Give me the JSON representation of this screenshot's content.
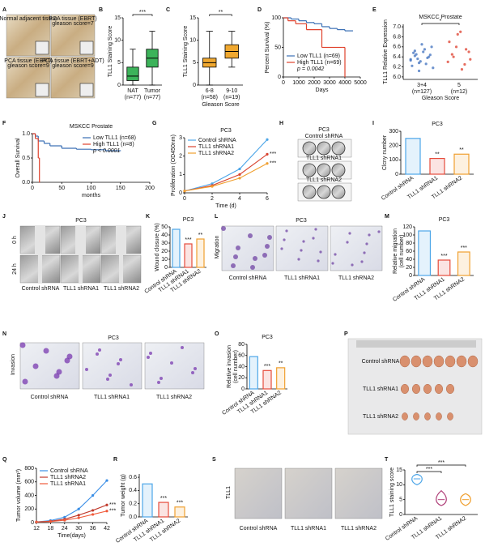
{
  "panels": [
    {
      "label": "A",
      "type": "image",
      "texts": [
        "Normal adjacent tissue",
        "PCA tissue (EBRT)",
        "gleason score=7",
        "PCA tissue (EBRT)",
        "gleason score=9",
        "PCA tissue (EBRT+ADT)",
        "gleason score=9"
      ]
    },
    {
      "label": "B",
      "type": "box",
      "ylabel": "TLL1 Staining Score",
      "categories": [
        "NAT",
        "Tumor"
      ],
      "n": [
        "(n=77)",
        "(n=77)"
      ],
      "color": "#3cb35a",
      "boxes": [
        {
          "min": 0,
          "q1": 1,
          "median": 2,
          "q3": 4,
          "max": 8
        },
        {
          "min": 0,
          "q1": 4,
          "median": 6,
          "q3": 8,
          "max": 12
        }
      ],
      "ylim": [
        0,
        15
      ],
      "yticks": [
        0,
        5,
        10,
        15
      ],
      "sig": "***"
    },
    {
      "label": "C",
      "type": "box",
      "ylabel": "TLL1 Staining Score",
      "xlabel": "Gleason Score",
      "categories": [
        "6-8",
        "9-10"
      ],
      "n": [
        "(n=58)",
        "(n=19)"
      ],
      "color": "#f0a830",
      "boxes": [
        {
          "min": 0,
          "q1": 4,
          "median": 5,
          "q3": 6,
          "max": 12
        },
        {
          "min": 4,
          "q1": 6,
          "median": 7.5,
          "q3": 9,
          "max": 12
        }
      ],
      "ylim": [
        0,
        15
      ],
      "yticks": [
        0,
        5,
        10,
        15
      ],
      "sig": "**"
    },
    {
      "label": "D",
      "type": "km",
      "ylabel": "Percent Survival (%)",
      "xlabel": "Days",
      "series": [
        {
          "name": "Low TLL1 (n=69)",
          "color": "#3a6fb5",
          "x": [
            0,
            500,
            1000,
            1500,
            2000,
            2500,
            3000,
            3500,
            4000,
            4500
          ],
          "y": [
            100,
            98,
            95,
            92,
            90,
            85,
            82,
            80,
            78,
            78
          ]
        },
        {
          "name": "High TLL1 (n=69)",
          "color": "#e0412b",
          "x": [
            0,
            300,
            800,
            1500,
            2500,
            3000,
            3800,
            4000
          ],
          "y": [
            100,
            95,
            90,
            80,
            50,
            50,
            50,
            0
          ]
        }
      ],
      "note": "p = 0.0042",
      "xlim": [
        0,
        5000
      ],
      "xticks": [
        0,
        1000,
        2000,
        3000,
        4000,
        5000
      ],
      "ylim": [
        0,
        100
      ],
      "yticks": [
        0,
        50,
        100
      ]
    },
    {
      "label": "E",
      "type": "scatter",
      "title": "MSKCC Prostate",
      "ylabel": "TLL1 Relative Expression",
      "xlabel": "Gleason Score",
      "categories": [
        "3+4",
        "5"
      ],
      "n": [
        "(n=127)",
        "(n=12)"
      ],
      "colors": [
        "#4a78c2",
        "#e04a3a"
      ],
      "groups": [
        [
          6.35,
          6.42,
          6.28,
          6.5,
          6.38,
          6.6,
          6.22,
          6.45,
          6.31,
          6.55,
          6.4,
          6.18,
          6.48,
          6.36,
          6.65,
          6.26,
          6.44,
          6.33,
          6.52,
          6.12
        ],
        [
          6.3,
          6.45,
          6.6,
          6.9,
          6.25,
          6.5,
          6.7,
          6.4,
          6.85,
          6.15,
          6.55,
          6.35
        ]
      ],
      "ylim": [
        5.95,
        7.05
      ],
      "yticks": [
        {
          "value": 6,
          "label": "6.0"
        },
        6.2,
        6.4,
        6.6,
        6.8,
        {
          "value": 7,
          "label": "7.0"
        }
      ],
      "sig": "*"
    },
    {
      "label": "F",
      "type": "km",
      "title": "MSKCC Prostate",
      "ylabel": "Overall Survival",
      "xlabel": "months",
      "series": [
        {
          "name": "Low TLL1 (n=68)",
          "color": "#3a6fb5",
          "x": [
            0,
            5,
            10,
            20,
            30,
            50,
            75,
            100,
            125,
            150
          ],
          "y": [
            1,
            0.95,
            0.85,
            0.8,
            0.75,
            0.7,
            0.68,
            0.67,
            0.65,
            0.65
          ]
        },
        {
          "name": "High TLL1 (n=8)",
          "color": "#e0412b",
          "x": [
            0,
            5,
            10,
            12
          ],
          "y": [
            1,
            0.9,
            0.5,
            0
          ]
        }
      ],
      "note": "p < 0.0001",
      "xlim": [
        0,
        200
      ],
      "xticks": [
        0,
        50,
        100,
        150,
        200
      ],
      "ylim": [
        0,
        1
      ],
      "yticks": [
        {
          "value": 0,
          "label": "0.0"
        },
        0.5,
        {
          "value": 1,
          "label": "1.0"
        }
      ]
    },
    {
      "label": "G",
      "type": "line",
      "title": "PC3",
      "ylabel": "Proliferation (OD450nm)",
      "xlabel": "Time (d)",
      "x": [
        0,
        2,
        4,
        6
      ],
      "series": [
        {
          "name": "Control shRNA",
          "color": "#4da6e8",
          "values": [
            0.1,
            0.5,
            1.3,
            2.9
          ]
        },
        {
          "name": "TLL1 shRNA1",
          "color": "#d8432f",
          "values": [
            0.1,
            0.4,
            1.0,
            2.1
          ]
        },
        {
          "name": "TLL1 shRNA2",
          "color": "#f0a030",
          "values": [
            0.1,
            0.35,
            0.8,
            1.6
          ]
        }
      ],
      "sig": [
        "***",
        "***"
      ],
      "xlim": [
        0,
        6
      ],
      "xticks": [
        0,
        2,
        4,
        6
      ],
      "ylim": [
        0,
        3
      ],
      "yticks": [
        0,
        1,
        2,
        3
      ]
    },
    {
      "label": "H",
      "type": "image",
      "title": "PC3",
      "labels": [
        "Control shRNA",
        "TLL1 shRNA1",
        "TLL1 shRNA2"
      ]
    },
    {
      "label": "I",
      "type": "bar",
      "title": "PC3",
      "ylabel": "Clcny number",
      "categories": [
        "Control shRNA",
        "TLL1 shRNA1",
        "TLL1 shRNA2"
      ],
      "values": [
        250,
        110,
        140
      ],
      "colors": [
        "#4da6e8",
        "#e74c3c",
        "#f0a030"
      ],
      "sig": [
        "**",
        "**"
      ],
      "ylim": [
        0,
        300
      ],
      "yticks": [
        0,
        100,
        200,
        300
      ]
    },
    {
      "label": "J",
      "type": "image",
      "title": "PC3",
      "rows": [
        "0 h",
        "24 h"
      ],
      "labels": [
        "Control shRNA",
        "TLL1 shRNA1",
        "TLL1 shRNA2"
      ]
    },
    {
      "label": "K",
      "type": "bar",
      "title": "PC3",
      "ylabel": "Wound closure (%)",
      "categories": [
        "Control shRNA",
        "TLL1 shRNA1",
        "TLL1 shRNA2"
      ],
      "values": [
        47,
        29,
        35
      ],
      "colors": [
        "#4da6e8",
        "#e74c3c",
        "#f0a030"
      ],
      "sig": [
        "***",
        "**"
      ],
      "ylim": [
        0,
        50
      ],
      "yticks": [
        0,
        10,
        20,
        30,
        40,
        50
      ]
    },
    {
      "label": "L",
      "type": "image",
      "title": "PC3",
      "side": "Migration",
      "labels": [
        "Control shRNA",
        "TLL1 shRNA1",
        "TLL1 shRNA2"
      ]
    },
    {
      "label": "M",
      "type": "bar",
      "title": "PC3",
      "ylabel": [
        "Relative migration",
        "(cell number)"
      ],
      "categories": [
        "Control shRNA",
        "TLL1 shRNA1",
        "TLL1 shRNA2"
      ],
      "values": [
        110,
        38,
        58
      ],
      "colors": [
        "#4da6e8",
        "#e74c3c",
        "#f0a030"
      ],
      "sig": [
        "***",
        "***"
      ],
      "ylim": [
        0,
        120
      ],
      "yticks": [
        0,
        20,
        40,
        60,
        80,
        100,
        120
      ]
    },
    {
      "label": "N",
      "type": "image",
      "title": "PC3",
      "side": "Invasion",
      "labels": [
        "Control shRNA",
        "TLL1 shRNA1",
        "TLL1 shRNA2"
      ]
    },
    {
      "label": "O",
      "type": "bar",
      "title": "PC3",
      "ylabel": [
        "Relative invasion",
        "(cell number)"
      ],
      "categories": [
        "Control shRNA",
        "TLL1 shRNA1",
        "TLL1 shRNA2"
      ],
      "values": [
        58,
        33,
        38
      ],
      "colors": [
        "#4da6e8",
        "#e74c3c",
        "#f0a030"
      ],
      "sig": [
        "***",
        "**"
      ],
      "ylim": [
        0,
        80
      ],
      "yticks": [
        0,
        20,
        40,
        60,
        80
      ]
    },
    {
      "label": "P",
      "type": "image",
      "labels": [
        "Control shRNA",
        "TLL1 shRNA1",
        "TLL1 shRNA2"
      ]
    },
    {
      "label": "Q",
      "type": "line",
      "ylabel": "Tumor volume (mm³)",
      "xlabel": "Time(days)",
      "x": [
        12,
        18,
        24,
        30,
        36,
        42
      ],
      "series": [
        {
          "name": "Control shRNA",
          "color": "#3a8ee6",
          "values": [
            10,
            30,
            80,
            200,
            400,
            620
          ]
        },
        {
          "name": "TLL1 shRNA2",
          "color": "#c0392b",
          "values": [
            10,
            20,
            50,
            110,
            180,
            260
          ]
        },
        {
          "name": "TLL1 shRNA1",
          "color": "#f05a3a",
          "values": [
            10,
            15,
            35,
            70,
            120,
            170
          ]
        }
      ],
      "sig": [
        "***",
        "***"
      ],
      "xlim": [
        12,
        42
      ],
      "xticks": [
        12,
        18,
        24,
        30,
        36,
        42
      ],
      "ylim": [
        0,
        800
      ],
      "yticks": [
        0,
        200,
        400,
        600,
        800
      ]
    },
    {
      "label": "R",
      "type": "bar",
      "ylabel": "Tumor weight (g)",
      "categories": [
        "Control shRNA",
        "TLL1 shRNA1",
        "TLL1 shRNA2"
      ],
      "values": [
        0.5,
        0.22,
        0.15
      ],
      "colors": [
        "#4da6e8",
        "#e74c3c",
        "#f0a030"
      ],
      "sig": [
        "***",
        "***"
      ],
      "ylim": [
        0,
        0.65
      ],
      "yticks": [
        {
          "value": 0,
          "label": "0.0"
        },
        0.2,
        0.4,
        0.6
      ]
    },
    {
      "label": "S",
      "type": "image",
      "side": "TLL1",
      "labels": [
        "Control shRNA",
        "TLL1 shRNA1",
        "TLL1 shRNA2"
      ]
    },
    {
      "label": "T",
      "type": "violin",
      "ylabel": "TLL1 staining score",
      "categories": [
        "Control shRNA",
        "TLL1 shRNA1",
        "TLL1 shRNA2"
      ],
      "colors": [
        "#4da6e8",
        "#b0417a",
        "#f0a030"
      ],
      "violins": [
        {
          "min": 10,
          "median": 12,
          "max": 13.5
        },
        {
          "min": 3,
          "median": 5,
          "max": 8
        },
        {
          "min": 3,
          "median": 5,
          "max": 7
        }
      ],
      "sig": [
        "***",
        "***"
      ],
      "ylim": [
        0,
        15
      ],
      "yticks": [
        0,
        5,
        10,
        15
      ]
    }
  ]
}
